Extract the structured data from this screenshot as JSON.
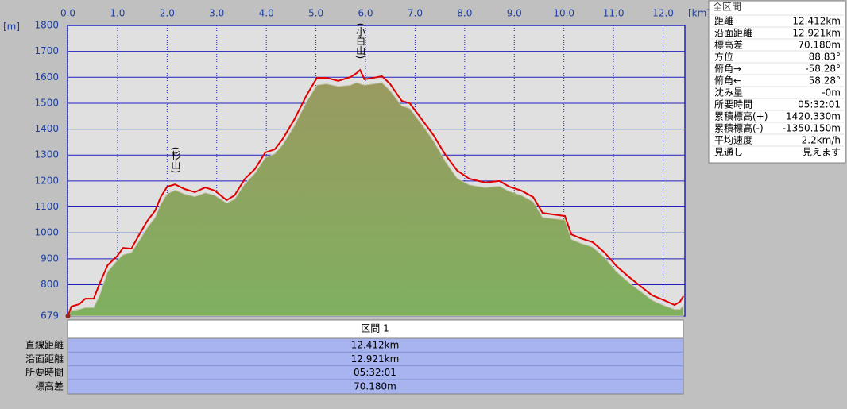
{
  "chart_data": {
    "type": "area-line",
    "x_label": "[km]",
    "y_label": "[m]",
    "x": [
      0,
      0.07,
      0.23,
      0.35,
      0.52,
      0.64,
      0.8,
      1.0,
      1.11,
      1.28,
      1.44,
      1.6,
      1.76,
      1.87,
      2.0,
      2.16,
      2.35,
      2.56,
      2.77,
      2.96,
      3.2,
      3.36,
      3.57,
      3.77,
      3.98,
      4.17,
      4.33,
      4.57,
      4.81,
      5.02,
      5.21,
      5.45,
      5.7,
      5.82,
      5.89,
      5.98,
      6.17,
      6.33,
      6.49,
      6.73,
      6.89,
      7.13,
      7.37,
      7.61,
      7.85,
      8.09,
      8.41,
      8.7,
      8.9,
      9.14,
      9.38,
      9.57,
      9.78,
      10.02,
      10.15,
      10.34,
      10.58,
      10.82,
      11.06,
      11.3,
      11.54,
      11.78,
      12.02,
      12.23,
      12.34,
      12.41
    ],
    "series": [
      {
        "color": "#e00000",
        "values": [
          679,
          716,
          725,
          746,
          746,
          805,
          875,
          912,
          942,
          939,
          994,
          1046,
          1086,
          1138,
          1178,
          1187,
          1169,
          1157,
          1175,
          1163,
          1126,
          1145,
          1209,
          1246,
          1310,
          1322,
          1362,
          1439,
          1530,
          1598,
          1598,
          1586,
          1601,
          1616,
          1628,
          1592,
          1598,
          1604,
          1576,
          1509,
          1500,
          1439,
          1377,
          1301,
          1240,
          1209,
          1194,
          1200,
          1178,
          1163,
          1138,
          1077,
          1071,
          1065,
          994,
          979,
          964,
          924,
          872,
          832,
          795,
          759,
          740,
          722,
          734,
          756
        ]
      },
      {
        "color": "#8aa860",
        "values": [
          679,
          700,
          705,
          712,
          712,
          760,
          850,
          895,
          915,
          925,
          970,
          1020,
          1060,
          1110,
          1150,
          1165,
          1150,
          1140,
          1155,
          1145,
          1115,
          1130,
          1190,
          1230,
          1290,
          1305,
          1340,
          1415,
          1505,
          1570,
          1575,
          1565,
          1570,
          1580,
          1575,
          1570,
          1575,
          1580,
          1550,
          1490,
          1480,
          1420,
          1355,
          1275,
          1210,
          1185,
          1175,
          1180,
          1160,
          1145,
          1120,
          1060,
          1055,
          1050,
          975,
          960,
          945,
          905,
          850,
          810,
          775,
          740,
          720,
          705,
          705,
          720
        ]
      }
    ],
    "annotations": [
      {
        "text": "(杉山)",
        "x": 2.16
      },
      {
        "text": "(小白山)",
        "x": 5.89
      }
    ],
    "xlim": [
      0,
      12.44
    ],
    "ylim": [
      679,
      1800
    ],
    "xticks": [
      {
        "value": 0,
        "label": "0.0"
      },
      {
        "value": 1,
        "label": "1.0"
      },
      {
        "value": 2,
        "label": "2.0"
      },
      {
        "value": 3,
        "label": "3.0"
      },
      {
        "value": 4,
        "label": "4.0"
      },
      {
        "value": 5,
        "label": "5.0"
      },
      {
        "value": 6,
        "label": "6.0"
      },
      {
        "value": 7,
        "label": "7.0"
      },
      {
        "value": 8,
        "label": "8.0"
      },
      {
        "value": 9,
        "label": "9.0"
      },
      {
        "value": 10,
        "label": "10.0"
      },
      {
        "value": 11,
        "label": "11.0"
      },
      {
        "value": 12,
        "label": "12.0"
      }
    ],
    "yticks": [
      679,
      800,
      900,
      1000,
      1100,
      1200,
      1300,
      1400,
      1500,
      1600,
      1700,
      1800
    ],
    "grid": true
  },
  "section_table": {
    "title": "区間 1",
    "rows": [
      [
        "直線距離",
        "12.412km"
      ],
      [
        "沿面距離",
        "12.921km"
      ],
      [
        "所要時間",
        "05:32:01"
      ],
      [
        "標高差",
        "70.180m"
      ]
    ]
  },
  "summary_panel": {
    "title": "全区間",
    "rows": [
      [
        "距離",
        "12.412km"
      ],
      [
        "沿面距離",
        "12.921km"
      ],
      [
        "標高差",
        "70.180m"
      ],
      [
        "方位",
        "88.83°"
      ],
      [
        "俯角→",
        "-58.28°"
      ],
      [
        "俯角←",
        "58.28°"
      ],
      [
        "沈み量",
        "-0m"
      ],
      [
        "所要時間",
        "05:32:01"
      ],
      [
        "累積標高(+)",
        "1420.330m"
      ],
      [
        "累積標高(-)",
        "-1350.150m"
      ],
      [
        "平均速度",
        "2.2km/h"
      ],
      [
        "見通し",
        "見えます"
      ]
    ]
  }
}
